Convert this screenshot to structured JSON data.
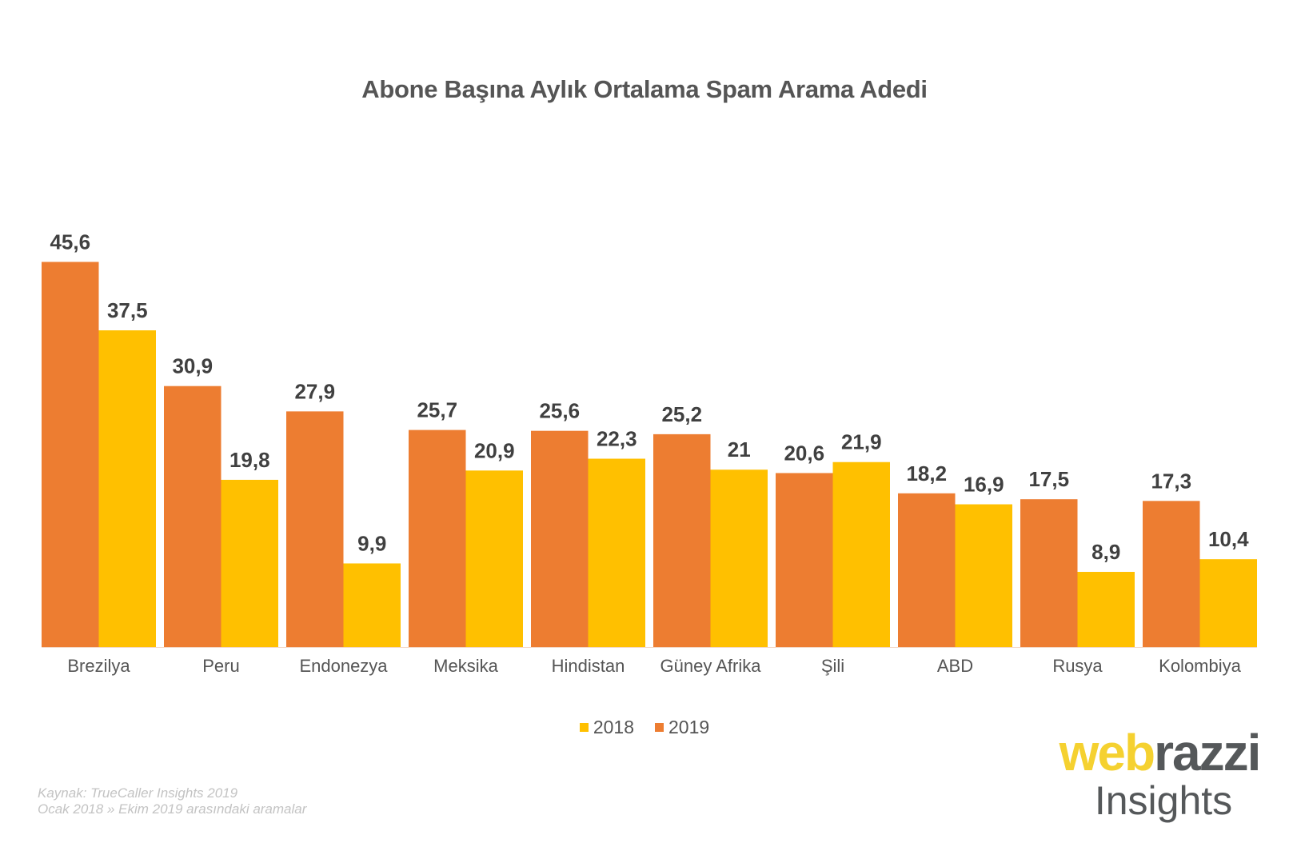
{
  "chart_data": {
    "type": "bar",
    "title": "Abone Başına Aylık Ortalama Spam Arama Adedi",
    "categories": [
      "Brezilya",
      "Peru",
      "Endonezya",
      "Meksika",
      "Hindistan",
      "Güney Afrika",
      "Şili",
      "ABD",
      "Rusya",
      "Kolombiya"
    ],
    "series": [
      {
        "name": "2019",
        "color": "#ED7D31",
        "values": [
          45.6,
          30.9,
          27.9,
          25.7,
          25.6,
          25.2,
          20.6,
          18.2,
          17.5,
          17.3
        ],
        "labels": [
          "45,6",
          "30,9",
          "27,9",
          "25,7",
          "25,6",
          "25,2",
          "20,6",
          "18,2",
          "17,5",
          "17,3"
        ]
      },
      {
        "name": "2018",
        "color": "#FFC000",
        "values": [
          37.5,
          19.8,
          9.9,
          20.9,
          22.3,
          21,
          21.9,
          16.9,
          8.9,
          10.4
        ],
        "labels": [
          "37,5",
          "19,8",
          "9,9",
          "20,9",
          "22,3",
          "21",
          "21,9",
          "16,9",
          "8,9",
          "10,4"
        ]
      }
    ],
    "legend": [
      {
        "label": "2018",
        "color": "#FFC000"
      },
      {
        "label": "2019",
        "color": "#ED7D31"
      }
    ],
    "legend_position": "bottom",
    "ylim": [
      0,
      50
    ],
    "grid": false,
    "yaxis_visible": false
  },
  "footnote": {
    "line1": "Kaynak: TrueCaller Insights 2019",
    "line2": "Ocak 2018 »  Ekim 2019 arasındaki aramalar"
  },
  "logo": {
    "part1": "web",
    "part2": "razzi",
    "part3": "Insights",
    "color1": "#F5D130",
    "color2": "#55585A"
  }
}
